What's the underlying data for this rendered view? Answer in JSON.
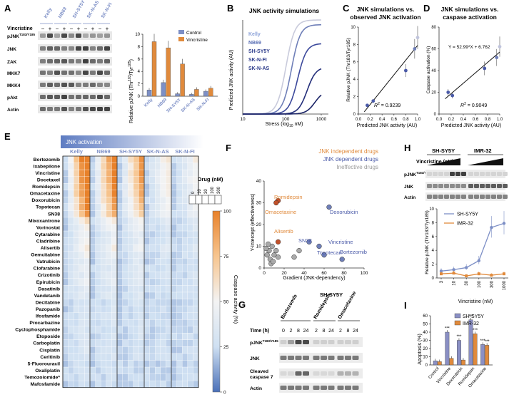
{
  "panel_letters": {
    "A": "A",
    "B": "B",
    "C": "C",
    "D": "D",
    "E": "E",
    "F": "F",
    "G": "G",
    "H": "H",
    "I": "I"
  },
  "colors": {
    "blue": "#7d8fc6",
    "orange": "#e08a3c",
    "dark_blue": "#2b3a8a",
    "red_orange": "#c0502a",
    "grey": "#9a9a9a"
  },
  "panelA": {
    "cell_lines": [
      "Kelly",
      "NB69",
      "SH-SY5Y",
      "SK-N-AS",
      "SK-N-FI"
    ],
    "vincristine_label": "Vincristine",
    "lane_signs": [
      "−",
      "+",
      "−",
      "+",
      "−",
      "+",
      "−",
      "+",
      "−",
      "+"
    ],
    "blot_labels": [
      "pJNK",
      "JNK",
      "ZAK",
      "MKK7",
      "MKK4",
      "pAkt",
      "Actin"
    ],
    "pjnk_sup": "T183/Y185",
    "legend": [
      "Control",
      "Vincristine"
    ],
    "ylabel": "Relative pJNK (Thr",
    "ylabel_sup1": "183",
    "ylabel_mid": "/Tyr",
    "ylabel_sup2": "185",
    "ylabel_end": ")",
    "yticks": [
      "0",
      "2",
      "4",
      "6",
      "8",
      "10"
    ]
  },
  "panelB": {
    "title": "JNK activity simulations",
    "ylabel": "Predicted JNK activity (AU)",
    "xlabel_pre": "Stress (log",
    "xlabel_sub": "10",
    "xlabel_post": " nM)",
    "xticks": [
      "10",
      "100",
      "1000"
    ],
    "legend": [
      "Kelly",
      "NB69",
      "SH-SY5Y",
      "SK-N-FI",
      "SK-N-AS"
    ]
  },
  "panelC": {
    "title_line1": "JNK simulations vs.",
    "title_line2": "observed JNK activation",
    "ylabel": "Relative pJNK (Thr183/Tyr185)",
    "xlabel": "Predicted JNK activity (AU)",
    "r2_prefix": "R",
    "r2_sup": "2",
    "r2_value": " = 0.9239",
    "yticks": [
      "0",
      "2",
      "4",
      "6",
      "8",
      "10"
    ],
    "xticks": [
      "0.0",
      "0.2",
      "0.4",
      "0.6",
      "0.8",
      "1.0"
    ]
  },
  "panelD": {
    "title_line1": "JNK simulations vs.",
    "title_line2": "caspase activation",
    "ylabel": "Caspase activation (%)",
    "xlabel": "Predicted JNK activity (AU)",
    "equation": "Y = 52.99*X + 6.762",
    "r2_prefix": "R",
    "r2_sup": "2",
    "r2_value": " = 0.9049",
    "yticks": [
      "0",
      "20",
      "40",
      "60",
      "80"
    ],
    "xticks": [
      "0.0",
      "0.2",
      "0.4",
      "0.6",
      "0.8",
      "1.0"
    ]
  },
  "panelE": {
    "header": "JNK activation",
    "cell_lines": [
      "Kelly",
      "NB69",
      "SH-SY5Y",
      "SK-N-AS",
      "SK-N-FI"
    ],
    "drugs": [
      "Bortezomib",
      "Ixabepilone",
      "Vincristine",
      "Docetaxel",
      "Romidepsin",
      "Omacetaxine",
      "Doxorubicin",
      "Topotecan",
      "SN38",
      "Mixoxantrone",
      "Vorinostat",
      "Cytarabine",
      "Cladribine",
      "Alisertib",
      "Gemcitabine",
      "Vatrubicin",
      "Clofarabine",
      "Crizotinib",
      "Epirubicin",
      "Dasatinib",
      "Vandetanib",
      "Decitabine",
      "Pazopanib",
      "Ifosfamide",
      "Procarbazine",
      "Cyclophosphamide",
      "Etoposide",
      "Carboplatin",
      "Cisplatin",
      "Ceritinib",
      "5-Fluorouracil",
      "Oxaliplatin",
      "Temozolomide*",
      "Mafosfamide"
    ],
    "dose_title": "Drug (nM)",
    "doses": [
      "0",
      "10",
      "30",
      "100",
      "300"
    ],
    "colorbar_label": "Caspase activity (%)",
    "colorbar_ticks": [
      "100",
      "75",
      "50",
      "25",
      "0"
    ]
  },
  "panelF": {
    "legend": [
      "JNK independent drugs",
      "JNK dependent drugs",
      "Ineffective drugs"
    ],
    "ylabel": "Y-Intercept (effectiveness)",
    "xlabel": "Gradient (JNK-dependency)",
    "yticks": [
      "0",
      "10",
      "20",
      "30",
      "40"
    ],
    "xticks": [
      "0",
      "20",
      "40",
      "60",
      "80",
      "100"
    ],
    "labels": [
      "Romidepsin",
      "Omacetaxine",
      "Doxorubicin",
      "Alisertib",
      "SN38",
      "Vincristine",
      "Topotecan",
      "Bortezomib"
    ]
  },
  "panelG": {
    "cell_line": "SH-SY5Y",
    "time_label": "Time (h)",
    "groups": [
      "Bortezomib",
      "Romidepsin",
      "Omacetaxine"
    ],
    "times": [
      "0",
      "2",
      "8",
      "24",
      "2",
      "8",
      "24",
      "2",
      "8",
      "24"
    ],
    "blot_labels": [
      "pJNK",
      "JNK",
      "Cleaved caspase 7",
      "Actin"
    ],
    "pjnk_sup": "T183/Y185"
  },
  "panelH": {
    "vincristine_label": "Vincristine (nM)",
    "cell_lines": [
      "SH-SY5Y",
      "IMR-32"
    ],
    "blot_labels": [
      "pJNK",
      "JNK",
      "Actin"
    ],
    "pjnk_sup": "T183/Y185",
    "legend": [
      "SH-SY5Y",
      "IMR-32"
    ],
    "ylabel": "Relative pJNK (Thr183/Tyr185)",
    "xlabel": "Vincristine (nM)",
    "xticks": [
      "3",
      "10",
      "30",
      "100",
      "300",
      "1000"
    ],
    "yticks": [
      "0",
      "2",
      "4",
      "6",
      "8",
      "10"
    ]
  },
  "panelI": {
    "legend": [
      "SH-SY5Y",
      "IMR-32"
    ],
    "ylabel": "Apoptosis (%)",
    "yticks": [
      "0",
      "10",
      "20",
      "30",
      "40",
      "50",
      "60"
    ],
    "stars": "***"
  },
  "chart_data": [
    {
      "type": "bar",
      "id": "A",
      "categories": [
        "Kelly",
        "NB69",
        "SH-SY5Y",
        "SK-N-AS",
        "SK-N-FI"
      ],
      "series": [
        {
          "name": "Control",
          "values": [
            1.0,
            2.2,
            0.4,
            0.3,
            0.8
          ]
        },
        {
          "name": "Vincristine",
          "values": [
            8.8,
            7.8,
            5.2,
            1.1,
            1.3
          ]
        }
      ],
      "ylabel": "Relative pJNK (Thr183/Tyr185)",
      "ylim": [
        0,
        10
      ]
    },
    {
      "type": "line",
      "id": "B",
      "title": "JNK activity simulations",
      "x": [
        10,
        100,
        1000
      ],
      "series": [
        "Kelly",
        "NB69",
        "SH-SY5Y",
        "SK-N-FI",
        "SK-N-AS"
      ],
      "xlabel": "Stress (log10 nM)",
      "ylabel": "Predicted JNK activity (AU)"
    },
    {
      "type": "scatter",
      "id": "C",
      "x": [
        0.15,
        0.25,
        0.8,
        0.95,
        1.0
      ],
      "y": [
        1.0,
        1.5,
        5.0,
        7.5,
        8.8
      ],
      "r2": 0.9239,
      "xlim": [
        0,
        1
      ],
      "ylim": [
        0,
        10
      ]
    },
    {
      "type": "scatter",
      "id": "D",
      "x": [
        0.15,
        0.22,
        0.75,
        0.95,
        1.0
      ],
      "y": [
        20,
        17,
        42,
        52,
        62
      ],
      "r2": 0.9049,
      "slope": 52.99,
      "intercept": 6.762,
      "xlim": [
        0,
        1
      ],
      "ylim": [
        0,
        80
      ]
    },
    {
      "type": "heatmap",
      "id": "E",
      "rows": 34,
      "cols": 25,
      "vmin": 0,
      "vmax": 100
    },
    {
      "type": "scatter",
      "id": "F",
      "series": [
        {
          "name": "JNK independent drugs",
          "points": [
            [
              14,
              31,
              "Romidepsin"
            ],
            [
              12,
              30,
              "Omacetaxine"
            ],
            [
              14,
              12,
              "Alisertib"
            ]
          ]
        },
        {
          "name": "JNK dependent drugs",
          "points": [
            [
              65,
              28,
              "Doxorubicin"
            ],
            [
              45,
              12,
              "SN38"
            ],
            [
              55,
              10,
              "Vincristine"
            ],
            [
              60,
              6,
              "Topotecan"
            ],
            [
              78,
              4,
              "Bortezomib"
            ]
          ]
        },
        {
          "name": "Ineffective drugs",
          "points": [
            [
              3,
              6
            ],
            [
              5,
              8
            ],
            [
              6,
              4
            ],
            [
              8,
              10
            ],
            [
              7,
              2
            ],
            [
              10,
              6
            ],
            [
              12,
              8
            ],
            [
              4,
              11
            ],
            [
              9,
              3
            ],
            [
              14,
              5
            ],
            [
              2,
              9
            ],
            [
              30,
              5
            ],
            [
              35,
              8
            ]
          ]
        }
      ],
      "xlim": [
        0,
        100
      ],
      "ylim": [
        0,
        40
      ]
    },
    {
      "type": "line",
      "id": "H",
      "x": [
        3,
        10,
        30,
        100,
        300,
        1000
      ],
      "series": [
        {
          "name": "SH-SY5Y",
          "values": [
            1.0,
            1.2,
            1.5,
            2.5,
            7.3,
            7.9
          ]
        },
        {
          "name": "IMR-32",
          "values": [
            0.6,
            0.7,
            0.3,
            0.6,
            0.4,
            0.6
          ]
        }
      ],
      "ylim": [
        0,
        10
      ]
    },
    {
      "type": "bar",
      "id": "I",
      "categories": [
        "Control",
        "Vincristine",
        "Doxorubicin",
        "Romidepsin",
        "Omacetaxine"
      ],
      "series": [
        {
          "name": "SH-SY5Y",
          "values": [
            5,
            40,
            30,
            55,
            25
          ]
        },
        {
          "name": "IMR-32",
          "values": [
            4,
            8,
            6,
            38,
            24
          ]
        }
      ],
      "ylabel": "Apoptosis (%)",
      "ylim": [
        0,
        60
      ]
    }
  ]
}
